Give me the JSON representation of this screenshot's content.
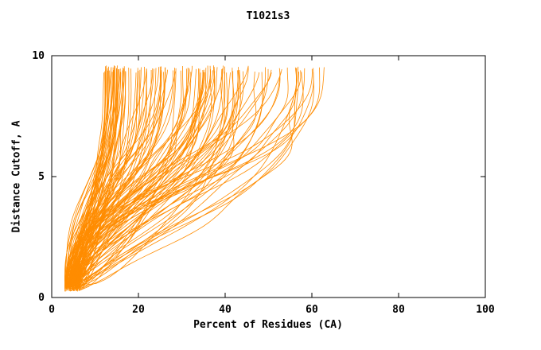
{
  "title": "T1021s3",
  "chart_data": {
    "type": "line",
    "title": "T1021s3",
    "xlabel": "Percent of Residues (CA)",
    "ylabel": "Distance Cutoff, A",
    "xlim": [
      0,
      100
    ],
    "ylim": [
      0,
      10
    ],
    "x_ticks": [
      0,
      20,
      40,
      60,
      80,
      100
    ],
    "y_ticks": [
      0,
      5,
      10
    ],
    "grid": false,
    "legend": "none",
    "series_color": "#ff8c00",
    "axis_color": "#000000",
    "background": "#ffffff",
    "description": "Dense family of model-accuracy curves: percent of CA residues (x) within distance cutoff (y). Curves converge near 3-7% at cutoff ~0.3 A and fan out to between ~12% and ~63% at cutoff ~9.5 A, with the densest bundle ending between 12% and 30%.",
    "curve_family": {
      "count": 135,
      "seed": 11,
      "y_start_range": [
        0.25,
        0.55
      ],
      "y_end_range": [
        9.3,
        9.6
      ],
      "x_start_range": [
        3,
        6.5
      ],
      "x_end_range": [
        12,
        63
      ],
      "x_end_bias": 1.55,
      "p_range": [
        0.45,
        2.25
      ],
      "q_range": [
        1.3,
        3.5
      ],
      "waviness": 1.0,
      "points_per_curve": 60
    }
  }
}
